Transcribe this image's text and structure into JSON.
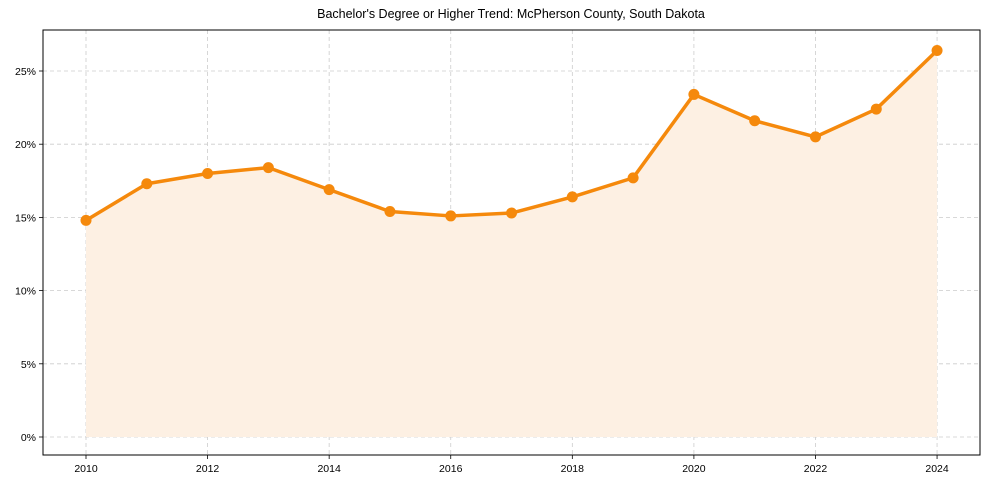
{
  "chart_data": {
    "type": "line",
    "title": "Bachelor's Degree or Higher Trend: McPherson County, South Dakota",
    "xlabel": "",
    "ylabel": "",
    "x": [
      2010,
      2011,
      2012,
      2013,
      2014,
      2015,
      2016,
      2017,
      2018,
      2019,
      2020,
      2021,
      2022,
      2023,
      2024
    ],
    "series": [
      {
        "name": "Bachelor's Degree or Higher",
        "values": [
          14.8,
          17.3,
          18.0,
          18.4,
          16.9,
          15.4,
          15.1,
          15.3,
          16.4,
          17.7,
          23.4,
          21.6,
          20.5,
          22.4,
          26.4
        ],
        "color": "#f5890c",
        "fill": "#fdf0e3"
      }
    ],
    "xticks": [
      "2010",
      "2012",
      "2014",
      "2016",
      "2018",
      "2020",
      "2022",
      "2024"
    ],
    "yticks": [
      "0%",
      "5%",
      "10%",
      "15%",
      "20%",
      "25%"
    ],
    "xlim": [
      2009.3,
      2024.7
    ],
    "ylim": [
      -1.2,
      27.9
    ],
    "grid": true,
    "legend": null
  }
}
